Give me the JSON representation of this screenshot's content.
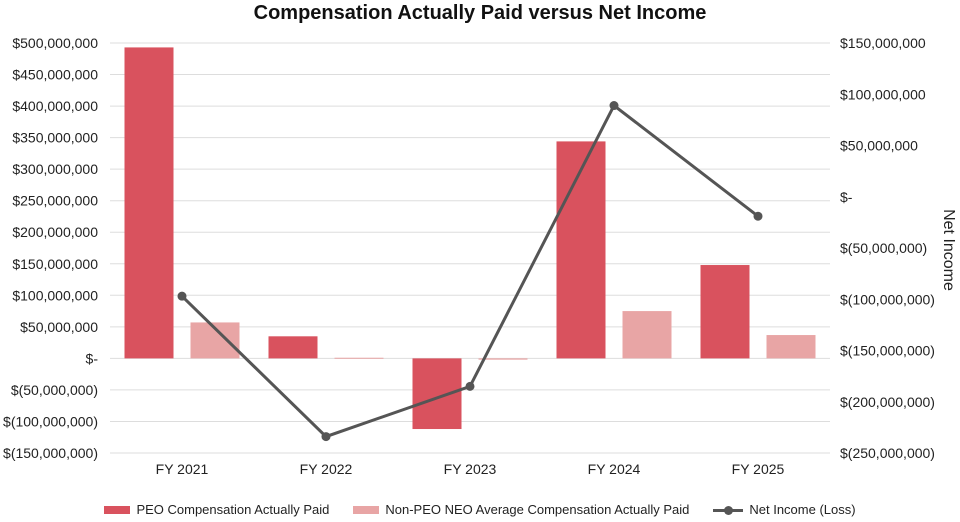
{
  "chart_data": {
    "type": "bar",
    "title": "Compensation Actually Paid versus Net Income",
    "categories": [
      "FY 2021",
      "FY 2022",
      "FY 2023",
      "FY 2024",
      "FY 2025"
    ],
    "series": [
      {
        "name": "PEO Compensation Actually Paid",
        "type": "bar",
        "axis": "left",
        "values": [
          493000000,
          35000000,
          -112000000,
          344000000,
          148000000
        ],
        "color": "#d9525e"
      },
      {
        "name": "Non-PEO NEO Average Compensation Actually Paid",
        "type": "bar",
        "axis": "left",
        "values": [
          57000000,
          1000000,
          -2000000,
          75000000,
          37000000
        ],
        "color": "#e8a5a5"
      },
      {
        "name": "Net Income (Loss)",
        "type": "line",
        "axis": "right",
        "values": [
          -97000000,
          -234000000,
          -185000000,
          89000000,
          -19000000
        ],
        "color": "#555555"
      }
    ],
    "left_axis": {
      "ylim": [
        -150000000,
        500000000
      ],
      "ticks": [
        500000000,
        450000000,
        400000000,
        350000000,
        300000000,
        250000000,
        200000000,
        150000000,
        100000000,
        50000000,
        0,
        -50000000,
        -100000000,
        -150000000
      ],
      "tick_labels": [
        "$500,000,000",
        "$450,000,000",
        "$400,000,000",
        "$350,000,000",
        "$300,000,000",
        "$250,000,000",
        "$200,000,000",
        "$150,000,000",
        "$100,000,000",
        "$50,000,000",
        "$-",
        "$(50,000,000)",
        "$(100,000,000)",
        "$(150,000,000)"
      ]
    },
    "right_axis": {
      "label": "Net Income",
      "ylim": [
        -250000000,
        150000000
      ],
      "ticks": [
        150000000,
        100000000,
        50000000,
        0,
        -50000000,
        -100000000,
        -150000000,
        -200000000,
        -250000000
      ],
      "tick_labels": [
        "$150,000,000",
        "$100,000,000",
        "$50,000,000",
        "$-",
        "$(50,000,000)",
        "$(100,000,000)",
        "$(150,000,000)",
        "$(200,000,000)",
        "$(250,000,000)"
      ]
    },
    "grid": true,
    "legend_position": "bottom"
  }
}
